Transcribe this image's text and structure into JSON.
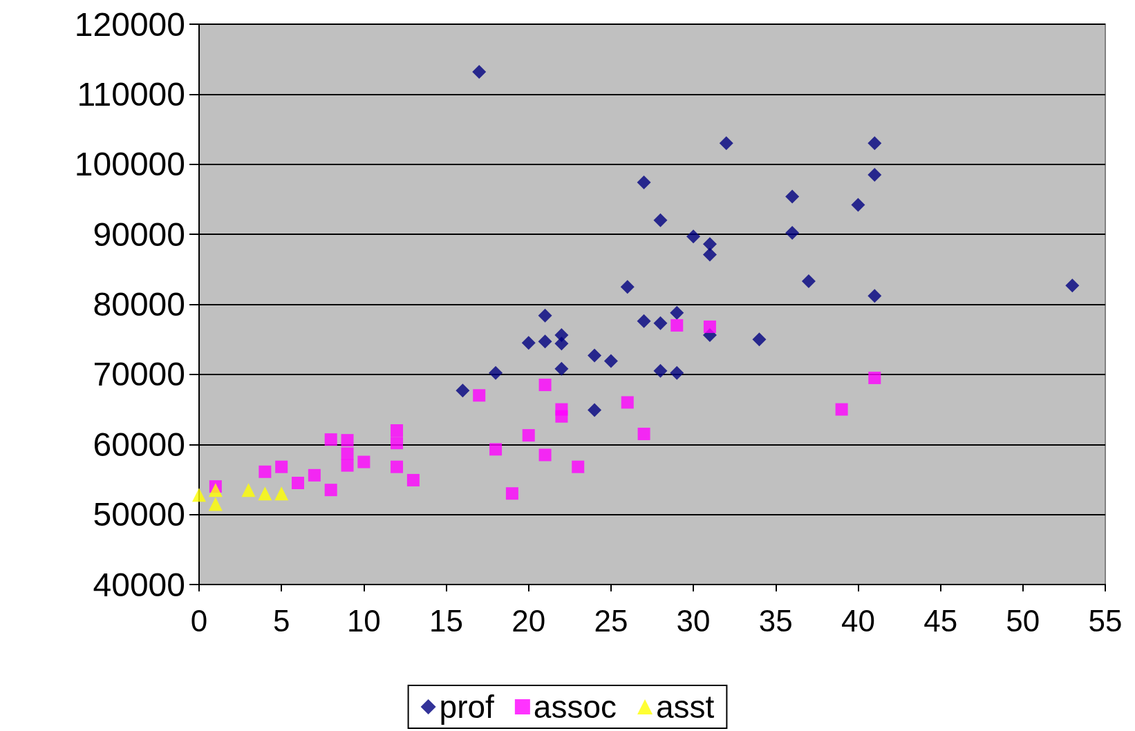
{
  "chart_data": {
    "type": "scatter",
    "xlim": [
      0,
      55
    ],
    "xticks": [
      0,
      5,
      10,
      15,
      20,
      25,
      30,
      35,
      40,
      45,
      50,
      55
    ],
    "ylim": [
      40000,
      120000
    ],
    "yticks": [
      40000,
      50000,
      60000,
      70000,
      80000,
      90000,
      100000,
      110000,
      120000
    ],
    "grid": "y",
    "legend": "bottom",
    "series": [
      {
        "name": "prof",
        "color": "#000080",
        "marker": "diamond",
        "x": [
          16,
          17,
          18,
          20,
          21,
          21,
          22,
          22,
          22,
          24,
          24,
          25,
          26,
          27,
          27,
          28,
          28,
          28,
          29,
          29,
          30,
          31,
          31,
          31,
          32,
          34,
          36,
          36,
          37,
          40,
          41,
          41,
          41,
          53
        ],
        "values": [
          67700,
          113200,
          70200,
          74500,
          78400,
          74700,
          75600,
          74400,
          70800,
          72700,
          64900,
          71900,
          82500,
          97400,
          77600,
          92000,
          77300,
          70500,
          78800,
          70200,
          89700,
          88600,
          87100,
          75600,
          103000,
          75000,
          95400,
          90200,
          83300,
          94200,
          103000,
          98500,
          81200,
          82700
        ]
      },
      {
        "name": "assoc",
        "color": "#ff00ff",
        "marker": "square",
        "x": [
          1,
          4,
          5,
          6,
          7,
          8,
          8,
          9,
          9,
          9,
          10,
          12,
          12,
          12,
          13,
          17,
          18,
          19,
          20,
          21,
          21,
          22,
          22,
          23,
          26,
          27,
          29,
          31,
          39,
          41
        ],
        "values": [
          54000,
          56100,
          56800,
          54500,
          55600,
          60700,
          53500,
          60600,
          58700,
          57000,
          57500,
          62000,
          60200,
          56800,
          54900,
          67000,
          59300,
          53000,
          61300,
          68500,
          58500,
          65000,
          64000,
          56800,
          66000,
          61500,
          77000,
          76800,
          65000,
          69500
        ]
      },
      {
        "name": "asst",
        "color": "#ffff00",
        "marker": "triangle",
        "x": [
          0,
          1,
          1,
          3,
          4,
          5
        ],
        "values": [
          52800,
          53500,
          51500,
          53500,
          53000,
          53000
        ]
      }
    ]
  }
}
